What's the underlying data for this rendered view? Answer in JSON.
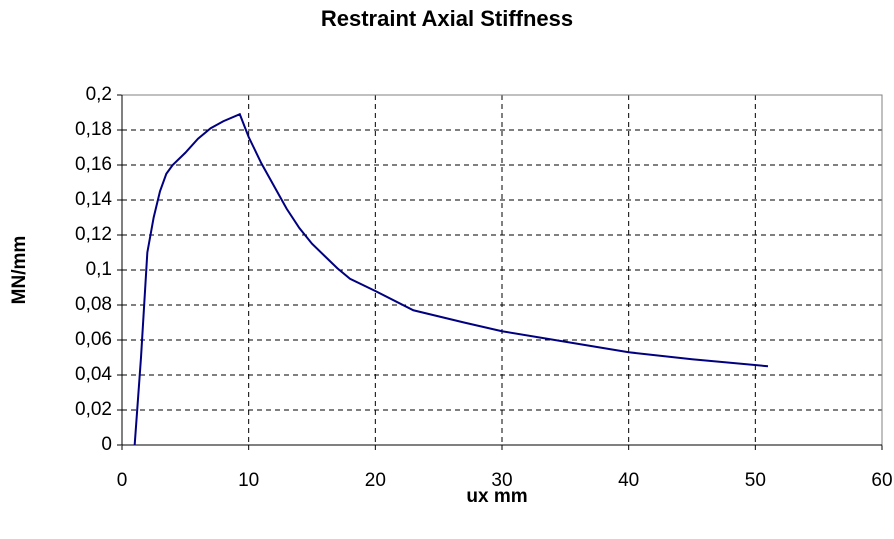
{
  "chart_data": {
    "type": "line",
    "title": "Restraint Axial Stiffness",
    "x_label": "ux mm",
    "y_label": "MN/mm",
    "x": [
      1.0,
      1.5,
      2,
      2.5,
      3,
      3.5,
      4,
      5,
      6,
      7,
      8,
      9.3,
      10,
      11,
      12,
      13,
      14,
      15,
      16,
      17,
      18,
      20,
      23,
      27,
      30,
      35,
      40,
      45,
      51
    ],
    "series": [
      {
        "name": "Restraint Axial Stiffness",
        "color": "#000080",
        "values": [
          0,
          0.05,
          0.11,
          0.13,
          0.145,
          0.155,
          0.16,
          0.167,
          0.175,
          0.181,
          0.185,
          0.189,
          0.176,
          0.161,
          0.148,
          0.135,
          0.124,
          0.115,
          0.108,
          0.101,
          0.095,
          0.088,
          0.077,
          0.07,
          0.065,
          0.059,
          0.053,
          0.049,
          0.045
        ]
      }
    ],
    "xlim": [
      0,
      60
    ],
    "xticks": [
      0,
      10,
      20,
      30,
      40,
      50,
      60
    ],
    "ylim": [
      0,
      0.2
    ],
    "yticks": [
      0,
      {
        "value": 0.02,
        "label": "0,02"
      },
      {
        "value": 0.04,
        "label": "0,04"
      },
      {
        "value": 0.06,
        "label": "0,06"
      },
      {
        "value": 0.08,
        "label": "0,08"
      },
      {
        "value": 0.1,
        "label": "0,1"
      },
      {
        "value": 0.12,
        "label": "0,12"
      },
      {
        "value": 0.14,
        "label": "0,14"
      },
      {
        "value": 0.16,
        "label": "0,16"
      },
      {
        "value": 0.18,
        "label": "0,18"
      },
      {
        "value": 0.2,
        "label": "0,2"
      }
    ],
    "grid": true
  }
}
